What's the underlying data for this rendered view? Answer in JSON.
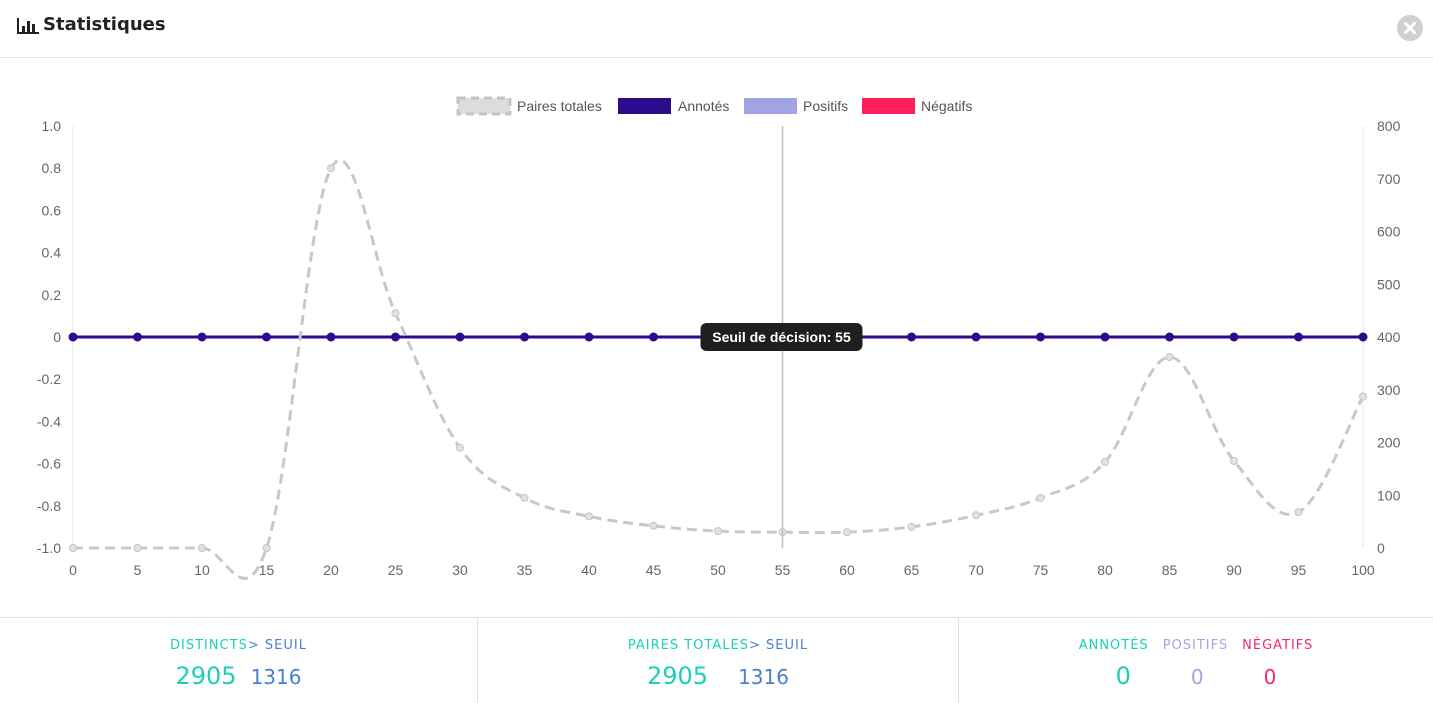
{
  "header": {
    "title": "Statistiques",
    "title_icon": "bar-chart-icon",
    "close_icon": "close-icon"
  },
  "chart_data": {
    "type": "line",
    "x": [
      0,
      5,
      10,
      15,
      20,
      25,
      30,
      35,
      40,
      45,
      50,
      55,
      60,
      65,
      70,
      75,
      80,
      85,
      90,
      95,
      100
    ],
    "xlim": [
      0,
      100
    ],
    "ylim": [
      -1.0,
      1.0
    ],
    "y2lim": [
      0,
      800
    ],
    "y_ticks": [
      "1.0",
      "0.8",
      "0.6",
      "0.4",
      "0.2",
      "0",
      "-0.2",
      "-0.4",
      "-0.6",
      "-0.8",
      "-1.0"
    ],
    "y2_ticks": [
      "800",
      "700",
      "600",
      "500",
      "400",
      "300",
      "200",
      "100",
      "0"
    ],
    "x_ticks": [
      "0",
      "5",
      "10",
      "15",
      "20",
      "25",
      "30",
      "35",
      "40",
      "45",
      "50",
      "55",
      "60",
      "65",
      "70",
      "75",
      "80",
      "85",
      "90",
      "95",
      "100"
    ],
    "legend_position": "top-center",
    "grid": false,
    "series": [
      {
        "name": "Paires totales",
        "axis": "right",
        "style": "dashed",
        "color": "#c8c8c8",
        "values": [
          0,
          0,
          0,
          0,
          720,
          445,
          190,
          95,
          60,
          42,
          32,
          30,
          30,
          40,
          62,
          95,
          163,
          362,
          165,
          68,
          287
        ]
      },
      {
        "name": "Annotés",
        "axis": "left",
        "style": "solid",
        "color": "#2e0a8c",
        "values": [
          0,
          0,
          0,
          0,
          0,
          0,
          0,
          0,
          0,
          0,
          0,
          0,
          0,
          0,
          0,
          0,
          0,
          0,
          0,
          0,
          0
        ]
      },
      {
        "name": "Positifs",
        "axis": "left",
        "style": "solid",
        "color": "#a0a4e3",
        "values": [
          0,
          0,
          0,
          0,
          0,
          0,
          0,
          0,
          0,
          0,
          0,
          0,
          0,
          0,
          0,
          0,
          0,
          0,
          0,
          0,
          0
        ]
      },
      {
        "name": "Négatifs",
        "axis": "left",
        "style": "solid",
        "color": "#ff1f5a",
        "values": [
          0,
          0,
          0,
          0,
          0,
          0,
          0,
          0,
          0,
          0,
          0,
          0,
          0,
          0,
          0,
          0,
          0,
          0,
          0,
          0,
          0
        ]
      }
    ],
    "annotation": {
      "x": 55,
      "label": "Seuil de décision: 55"
    }
  },
  "stats": {
    "col1": {
      "label_a": "Distincts",
      "label_b": "> seuil",
      "value_a": "2905",
      "value_b": "1316"
    },
    "col2": {
      "label_a": "Paires totales",
      "label_b": "> seuil",
      "value_a": "2905",
      "value_b": "1316"
    },
    "col3": {
      "label_a": "Annotés",
      "label_b": "Positifs",
      "label_c": "Négatifs",
      "value_a": "0",
      "value_b": "0",
      "value_c": "0"
    }
  }
}
